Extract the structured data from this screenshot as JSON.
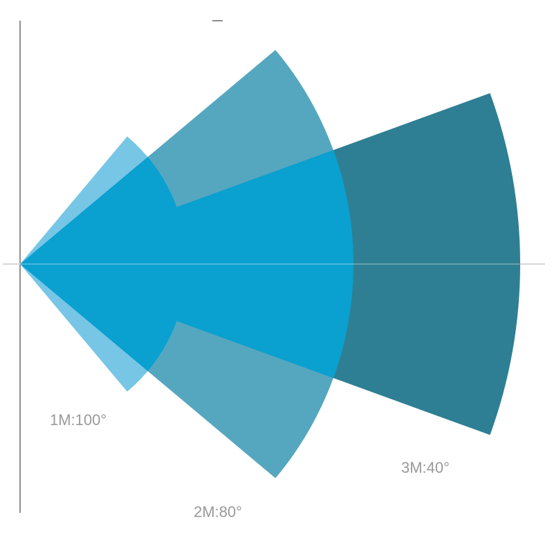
{
  "colors": {
    "axis": "#8f8f8f",
    "midline": "#d6d6d6",
    "far_fill": "#2e7f93",
    "mid_fill": "#3d9bb7",
    "near_fill": "#5fbce0",
    "overlap_fill": "#0aa0cf",
    "label": "#9a9a9a"
  },
  "sectors": [
    {
      "id": "1m",
      "label": "1M:100°",
      "range_m": 1,
      "angle_deg": 100
    },
    {
      "id": "2m",
      "label": "2M:80°",
      "range_m": 2,
      "angle_deg": 80
    },
    {
      "id": "3m",
      "label": "3M:40°",
      "range_m": 3,
      "angle_deg": 40
    }
  ]
}
